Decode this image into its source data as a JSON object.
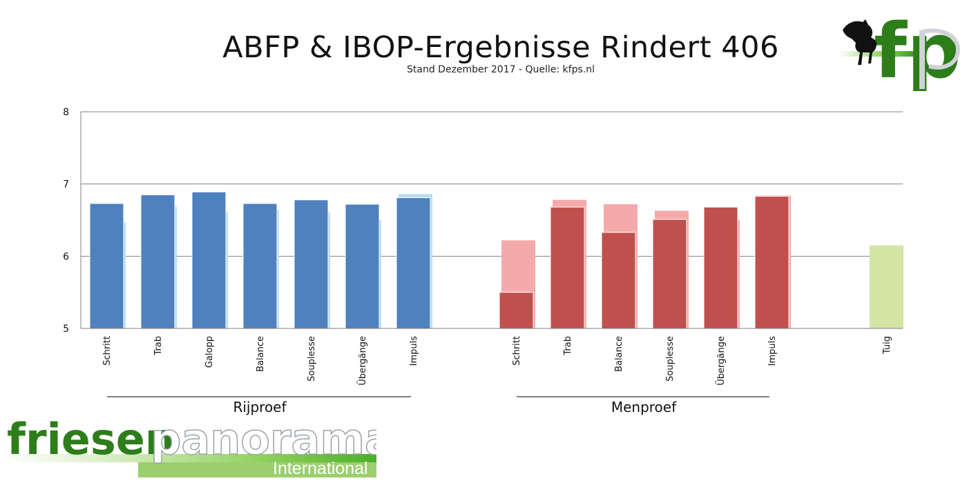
{
  "header": {
    "title": "ABFP & IBOP-Ergebnisse Rindert 406",
    "subtitle": "Stand Dezember 2017 - Quelle: kfps.nl"
  },
  "logos": {
    "top_right": {
      "text": "fp",
      "icon": "horse-icon"
    },
    "bottom_left": {
      "word1": "friesen",
      "word2": "panorama",
      "sub": "International"
    }
  },
  "colors": {
    "rijproef_main": "#4f81bd",
    "rijproef_light": "#b7dcf5",
    "menproef_main": "#c0504d",
    "menproef_light": "#f4aaaa",
    "tuig": "#d2e5a4",
    "gridline": "#808080",
    "brand_green": "#2e7d1b"
  },
  "chart_data": {
    "type": "bar",
    "ylim": [
      5,
      8
    ],
    "yticks": [
      5,
      6,
      7,
      8
    ],
    "grid": true,
    "groups": [
      {
        "label": "Rijproef",
        "categories": [
          "Schritt",
          "Trab",
          "Galopp",
          "Balance",
          "Souplesse",
          "Übergänge",
          "Impuls"
        ],
        "series": [
          {
            "values": [
              6.73,
              6.85,
              6.89,
              6.73,
              6.78,
              6.72,
              6.81
            ]
          },
          {
            "values": [
              6.47,
              6.69,
              6.61,
              6.64,
              6.61,
              6.5,
              6.86
            ]
          }
        ]
      },
      {
        "label": "Menproef",
        "categories": [
          "Schritt",
          "Trab",
          "Balance",
          "Souplesse",
          "Übergänge",
          "Impuls"
        ],
        "series": [
          {
            "values": [
              5.5,
              6.68,
              6.33,
              6.51,
              6.68,
              6.83
            ]
          },
          {
            "values": [
              6.22,
              6.78,
              6.72,
              6.63,
              6.5,
              6.84
            ]
          }
        ]
      },
      {
        "label": "",
        "categories": [
          "Tuig"
        ],
        "series": [
          {
            "values": [
              6.15
            ]
          }
        ]
      }
    ]
  }
}
